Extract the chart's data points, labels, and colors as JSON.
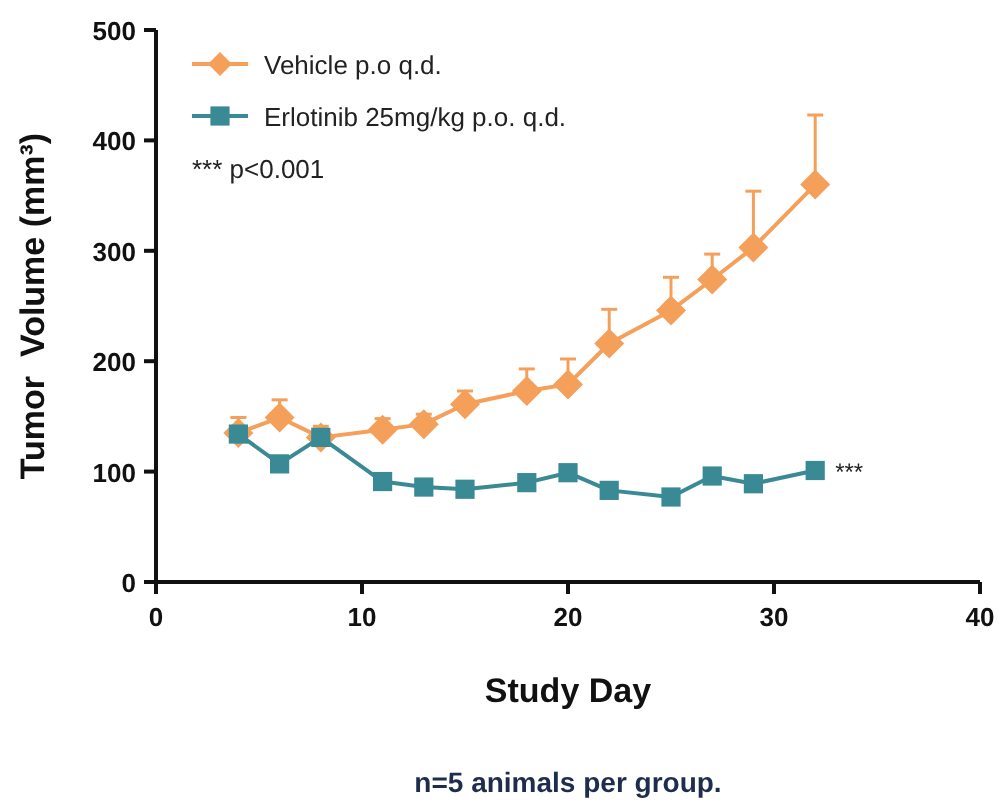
{
  "chart_data": {
    "type": "line",
    "xlabel": "Study Day",
    "ylabel": "Tumor  Volume (mm³)",
    "x": [
      4,
      6,
      8,
      11,
      13,
      15,
      18,
      20,
      22,
      25,
      27,
      29,
      32
    ],
    "series": [
      {
        "name": "Vehicle p.o q.d.",
        "color": "#f5a05a",
        "marker": "diamond",
        "values": [
          135,
          149,
          131,
          138,
          143,
          161,
          173,
          179,
          216,
          246,
          274,
          303,
          360
        ],
        "errors": [
          [
            135,
            149
          ],
          [
            149,
            165
          ],
          [
            131,
            141
          ],
          [
            138,
            148
          ],
          [
            143,
            152
          ],
          [
            161,
            173
          ],
          [
            173,
            193
          ],
          [
            179,
            202
          ],
          [
            216,
            247
          ],
          [
            246,
            276
          ],
          [
            274,
            297
          ],
          [
            303,
            354
          ],
          [
            360,
            423
          ]
        ]
      },
      {
        "name": "Erlotinib 25mg/kg p.o. q.d.",
        "color": "#3a8a96",
        "marker": "square",
        "values": [
          134,
          107,
          131,
          91,
          86,
          84,
          90,
          99,
          83,
          77,
          96,
          89,
          101
        ]
      }
    ],
    "xlim": [
      0,
      40
    ],
    "xticks": [
      0,
      10,
      20,
      30,
      40
    ],
    "ylim": [
      0,
      500
    ],
    "yticks": [
      0,
      100,
      200,
      300,
      400,
      500
    ],
    "grid": false,
    "legend": "top left",
    "annotations": [
      "*** p<0.001",
      {
        "text": "***",
        "x": 32,
        "y": 101
      },
      "n=5 animals per group."
    ]
  }
}
